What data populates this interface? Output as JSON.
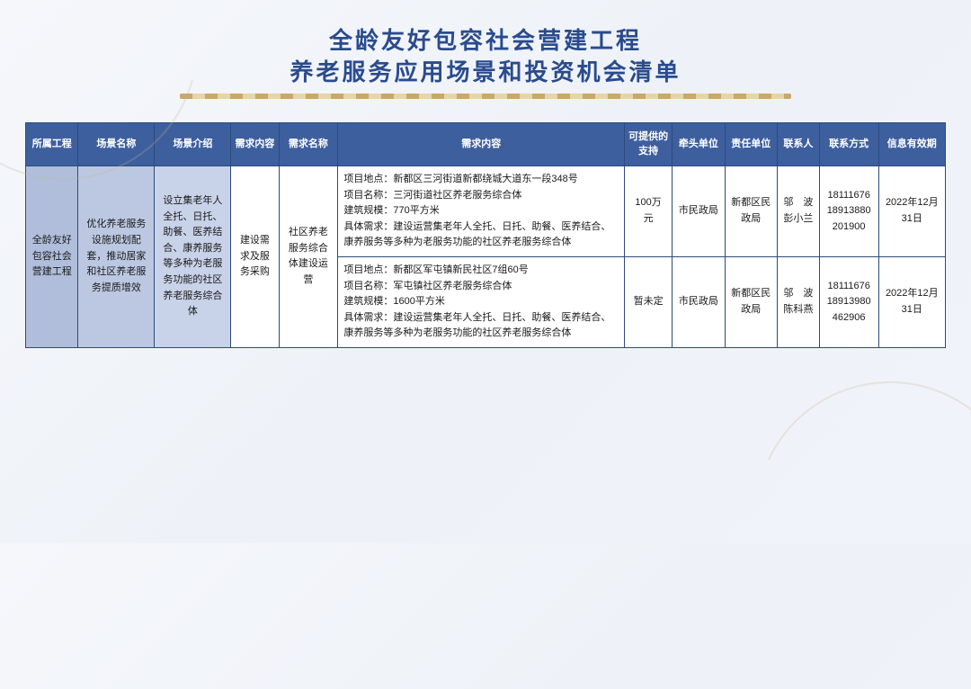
{
  "title": {
    "line1": "全龄友好包容社会营建工程",
    "line2": "养老服务应用场景和投资机会清单"
  },
  "table": {
    "headers": {
      "project": "所属工程",
      "scene_name": "场景名称",
      "scene_intro": "场景介绍",
      "req_content_hdr": "需求内容",
      "req_name": "需求名称",
      "req_detail": "需求内容",
      "support": "可提供的支持",
      "lead_unit": "牵头单位",
      "resp_unit": "责任单位",
      "contact": "联系人",
      "phone": "联系方式",
      "valid": "信息有效期"
    },
    "body": {
      "project": "全龄友好包容社会营建工程",
      "scene_name": "优化养老服务设施规划配套，推动居家和社区养老服务提质增效",
      "scene_intro": "设立集老年人全托、日托、助餐、医养结合、康养服务等多种为老服务功能的社区养老服务综合体",
      "req_content_hdr_cell": "建设需求及服务采购",
      "req_name_cell": "社区养老服务综合体建设运营",
      "rows": [
        {
          "detail_lines": [
            "项目地点：新都区三河街道新都绕城大道东一段348号",
            "项目名称：三河街道社区养老服务综合体",
            "建筑规模：770平方米",
            "具体需求：建设运营集老年人全托、日托、助餐、医养结合、康养服务等多种为老服务功能的社区养老服务综合体"
          ],
          "support": "100万元",
          "lead_unit": "市民政局",
          "resp_unit": "新都区民政局",
          "contact": "邬　波 彭小兰",
          "phone": "18111676 18913880 201900",
          "valid": "2022年12月31日"
        },
        {
          "detail_lines": [
            "项目地点：新都区军屯镇新民社区7组60号",
            "项目名称：军屯镇社区养老服务综合体",
            "建筑规模：1600平方米",
            "具体需求：建设运营集老年人全托、日托、助餐、医养结合、康养服务等多种为老服务功能的社区养老服务综合体"
          ],
          "support": "暂未定",
          "lead_unit": "市民政局",
          "resp_unit": "新都区民政局",
          "contact": "邬　波 陈科燕",
          "phone": "18111676 18913980 462906",
          "valid": "2022年12月31日"
        }
      ]
    }
  },
  "style": {
    "title_color": "#2a4b8d",
    "header_bg": "#3e5f9e",
    "border_color": "#2d4a7d",
    "tint1": "#b0bedc",
    "tint2": "#bcc8e2",
    "tint3": "#c8d2e8",
    "underline_gradient": [
      "#c9a86a",
      "#e6d4aa"
    ]
  }
}
